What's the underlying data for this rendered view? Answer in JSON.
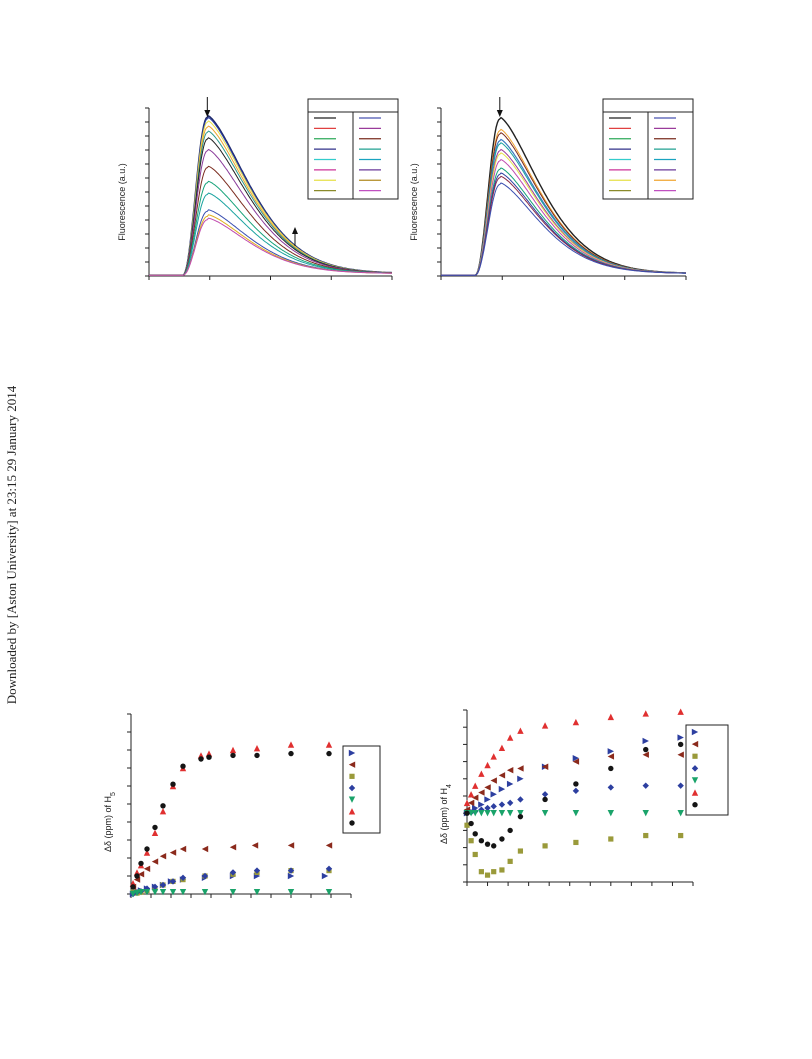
{
  "watermark": "Downloaded by [Aston University] at 23:15 29 January 2014",
  "chart_data": [
    {
      "type": "line",
      "ylabel": "Fluorescence (a.u.)",
      "xlabel": "",
      "legend": "top-right",
      "legend_rows": 8,
      "x_range": [
        0,
        100
      ],
      "ylim": [
        0,
        1
      ],
      "peak_x": 24,
      "tail_scale": 25,
      "series": [
        {
          "color": "#1f2a6b",
          "peak": 0.94,
          "lw": 1.6
        },
        {
          "color": "#2d3fa0",
          "peak": 0.93,
          "lw": 1.0
        },
        {
          "color": "#e6e04a",
          "peak": 0.91,
          "lw": 1.0
        },
        {
          "color": "#f0a430",
          "peak": 0.88,
          "lw": 1.0
        },
        {
          "color": "#2e9a8c",
          "peak": 0.85,
          "lw": 1.0
        },
        {
          "color": "#222222",
          "peak": 0.81,
          "lw": 1.0
        },
        {
          "color": "#8a3b9a",
          "peak": 0.74,
          "lw": 1.0
        },
        {
          "color": "#7a2b1e",
          "peak": 0.64,
          "lw": 1.0
        },
        {
          "color": "#17a37a",
          "peak": 0.55,
          "lw": 1.0
        },
        {
          "color": "#1aa3a0",
          "peak": 0.48,
          "lw": 1.0
        },
        {
          "color": "#3a4fb0",
          "peak": 0.38,
          "lw": 1.0
        },
        {
          "color": "#e0b020",
          "peak": 0.35,
          "lw": 1.0
        },
        {
          "color": "#c04bb0",
          "peak": 0.33,
          "lw": 1.0
        }
      ],
      "legend_colors": [
        "#222222",
        "#e04040",
        "#2eaa5a",
        "#30308a",
        "#33cccc",
        "#cc3399",
        "#e6e04a",
        "#8a8a2a",
        "#4a55b0",
        "#9a3b9a",
        "#7a2b1e",
        "#20a090",
        "#1aa3c0",
        "#6a3a9a",
        "#b08a20",
        "#c050c0"
      ],
      "annotations": [
        "down-arrow at peak",
        "up-arrow at crossing region"
      ]
    },
    {
      "type": "line",
      "ylabel": "Fluorescence (a.u.)",
      "xlabel": "",
      "legend": "top-right",
      "legend_rows": 8,
      "x_range": [
        0,
        100
      ],
      "ylim": [
        0,
        1
      ],
      "peak_x": 24,
      "tail_scale": 24,
      "series": [
        {
          "color": "#222222",
          "peak": 0.93,
          "lw": 1.4
        },
        {
          "color": "#f0a430",
          "peak": 0.86,
          "lw": 1.0
        },
        {
          "color": "#7a2b1e",
          "peak": 0.84,
          "lw": 1.0
        },
        {
          "color": "#3a7ac0",
          "peak": 0.8,
          "lw": 1.2
        },
        {
          "color": "#1aa3a0",
          "peak": 0.78,
          "lw": 1.0
        },
        {
          "color": "#9a3b9a",
          "peak": 0.74,
          "lw": 1.0
        },
        {
          "color": "#e6e04a",
          "peak": 0.72,
          "lw": 1.0
        },
        {
          "color": "#c04bb0",
          "peak": 0.68,
          "lw": 1.0
        },
        {
          "color": "#17a37a",
          "peak": 0.63,
          "lw": 1.0
        },
        {
          "color": "#2d3fa0",
          "peak": 0.6,
          "lw": 1.0
        },
        {
          "color": "#8a2b4a",
          "peak": 0.58,
          "lw": 1.0
        },
        {
          "color": "#3a4fb0",
          "peak": 0.54,
          "lw": 1.0
        }
      ],
      "legend_colors": [
        "#222222",
        "#e04040",
        "#2eaa5a",
        "#30308a",
        "#33cccc",
        "#cc3399",
        "#e6e04a",
        "#8a8a2a",
        "#4a55b0",
        "#9a3b9a",
        "#7a2b1e",
        "#20a090",
        "#1aa3c0",
        "#6a3a9a",
        "#f0a430",
        "#c050c0"
      ],
      "annotations": [
        "down-arrow at peak"
      ]
    },
    {
      "type": "scatter",
      "ylabel": "Δδ (ppm) of H",
      "ylabel_sub": "5",
      "xlabel": "",
      "legend": "right",
      "x_range": [
        0,
        11
      ],
      "ylim": [
        0,
        10
      ],
      "series": [
        {
          "marker": "tri-right",
          "color": "#2d3fa0",
          "points": [
            [
              0.1,
              0.0
            ],
            [
              0.3,
              0.1
            ],
            [
              0.5,
              0.2
            ],
            [
              0.8,
              0.3
            ],
            [
              1.2,
              0.4
            ],
            [
              1.6,
              0.5
            ],
            [
              2.0,
              0.7
            ],
            [
              2.6,
              0.8
            ],
            [
              3.7,
              0.9
            ],
            [
              5.1,
              1.0
            ],
            [
              6.3,
              1.0
            ],
            [
              8.0,
              1.0
            ],
            [
              9.7,
              1.0
            ]
          ]
        },
        {
          "marker": "tri-left",
          "color": "#8b2a1c",
          "points": [
            [
              0.1,
              0.4
            ],
            [
              0.3,
              0.8
            ],
            [
              0.5,
              1.1
            ],
            [
              0.8,
              1.4
            ],
            [
              1.2,
              1.8
            ],
            [
              1.6,
              2.1
            ],
            [
              2.1,
              2.3
            ],
            [
              2.6,
              2.5
            ],
            [
              3.7,
              2.5
            ],
            [
              5.1,
              2.6
            ],
            [
              6.2,
              2.7
            ],
            [
              8.0,
              2.7
            ],
            [
              9.9,
              2.7
            ]
          ]
        },
        {
          "marker": "square",
          "color": "#9a9a3a",
          "points": [
            [
              0.1,
              0.1
            ],
            [
              0.3,
              0.05
            ],
            [
              0.5,
              0.1
            ],
            [
              0.8,
              0.2
            ],
            [
              1.2,
              0.3
            ],
            [
              1.6,
              0.5
            ],
            [
              2.1,
              0.7
            ],
            [
              2.6,
              0.8
            ],
            [
              3.7,
              1.0
            ],
            [
              5.1,
              1.1
            ],
            [
              6.3,
              1.2
            ],
            [
              8.0,
              1.3
            ],
            [
              9.9,
              1.3
            ]
          ]
        },
        {
          "marker": "diamond",
          "color": "#2d3fa0",
          "points": [
            [
              0.1,
              0.0
            ],
            [
              0.3,
              0.1
            ],
            [
              0.5,
              0.15
            ],
            [
              0.8,
              0.3
            ],
            [
              1.2,
              0.4
            ],
            [
              1.6,
              0.5
            ],
            [
              2.1,
              0.7
            ],
            [
              2.6,
              0.9
            ],
            [
              3.7,
              1.0
            ],
            [
              5.1,
              1.2
            ],
            [
              6.3,
              1.3
            ],
            [
              8.0,
              1.3
            ],
            [
              9.9,
              1.4
            ]
          ]
        },
        {
          "marker": "tri-down",
          "color": "#1aa36a",
          "points": [
            [
              0.1,
              0.0
            ],
            [
              0.3,
              0.05
            ],
            [
              0.5,
              0.1
            ],
            [
              0.8,
              0.1
            ],
            [
              1.2,
              0.1
            ],
            [
              1.6,
              0.1
            ],
            [
              2.1,
              0.1
            ],
            [
              2.6,
              0.1
            ],
            [
              3.7,
              0.1
            ],
            [
              5.1,
              0.1
            ],
            [
              6.3,
              0.1
            ],
            [
              8.0,
              0.1
            ],
            [
              9.9,
              0.1
            ]
          ]
        },
        {
          "marker": "tri-up",
          "color": "#e03030",
          "points": [
            [
              0.1,
              0.6
            ],
            [
              0.3,
              1.2
            ],
            [
              0.5,
              1.6
            ],
            [
              0.8,
              2.3
            ],
            [
              1.2,
              3.4
            ],
            [
              1.6,
              4.6
            ],
            [
              2.1,
              6.0
            ],
            [
              2.6,
              7.0
            ],
            [
              3.5,
              7.7
            ],
            [
              3.9,
              7.8
            ],
            [
              5.1,
              8.0
            ],
            [
              6.3,
              8.1
            ],
            [
              8.0,
              8.3
            ],
            [
              9.9,
              8.3
            ]
          ]
        },
        {
          "marker": "circle",
          "color": "#151515",
          "points": [
            [
              0.1,
              0.4
            ],
            [
              0.3,
              1.0
            ],
            [
              0.5,
              1.7
            ],
            [
              0.8,
              2.5
            ],
            [
              1.2,
              3.7
            ],
            [
              1.6,
              4.9
            ],
            [
              2.1,
              6.1
            ],
            [
              2.6,
              7.1
            ],
            [
              3.5,
              7.5
            ],
            [
              3.9,
              7.6
            ],
            [
              5.1,
              7.7
            ],
            [
              6.3,
              7.7
            ],
            [
              8.0,
              7.8
            ],
            [
              9.9,
              7.8
            ]
          ]
        }
      ]
    },
    {
      "type": "scatter",
      "ylabel": "Δδ (ppm) of H",
      "ylabel_sub": "4",
      "xlabel": "",
      "legend": "right",
      "x_range": [
        0,
        11
      ],
      "ylim": [
        -4,
        6
      ],
      "series": [
        {
          "marker": "tri-right",
          "color": "#2d3fa0",
          "points": [
            [
              0.0,
              0.0
            ],
            [
              0.2,
              0.1
            ],
            [
              0.4,
              0.3
            ],
            [
              0.7,
              0.5
            ],
            [
              1.0,
              0.8
            ],
            [
              1.3,
              1.1
            ],
            [
              1.7,
              1.4
            ],
            [
              2.1,
              1.7
            ],
            [
              2.6,
              2.0
            ],
            [
              3.8,
              2.7
            ],
            [
              5.3,
              3.2
            ],
            [
              7.0,
              3.6
            ],
            [
              8.7,
              4.2
            ],
            [
              10.4,
              4.4
            ]
          ]
        },
        {
          "marker": "tri-left",
          "color": "#8b2a1c",
          "points": [
            [
              0.0,
              0.2
            ],
            [
              0.2,
              0.6
            ],
            [
              0.4,
              0.9
            ],
            [
              0.7,
              1.2
            ],
            [
              1.0,
              1.5
            ],
            [
              1.3,
              1.9
            ],
            [
              1.7,
              2.2
            ],
            [
              2.1,
              2.5
            ],
            [
              2.6,
              2.6
            ],
            [
              3.8,
              2.7
            ],
            [
              5.3,
              3.0
            ],
            [
              7.0,
              3.3
            ],
            [
              8.7,
              3.4
            ],
            [
              10.4,
              3.4
            ]
          ]
        },
        {
          "marker": "square",
          "color": "#9a9a3a",
          "points": [
            [
              0.0,
              -0.7
            ],
            [
              0.2,
              -1.6
            ],
            [
              0.4,
              -2.4
            ],
            [
              0.7,
              -3.4
            ],
            [
              1.0,
              -3.6
            ],
            [
              1.3,
              -3.4
            ],
            [
              1.7,
              -3.3
            ],
            [
              2.1,
              -2.8
            ],
            [
              2.6,
              -2.2
            ],
            [
              3.8,
              -1.9
            ],
            [
              5.3,
              -1.7
            ],
            [
              7.0,
              -1.5
            ],
            [
              8.7,
              -1.3
            ],
            [
              10.4,
              -1.3
            ]
          ]
        },
        {
          "marker": "diamond",
          "color": "#2d3fa0",
          "points": [
            [
              0.0,
              0.0
            ],
            [
              0.2,
              0.05
            ],
            [
              0.4,
              0.1
            ],
            [
              0.7,
              0.2
            ],
            [
              1.0,
              0.3
            ],
            [
              1.3,
              0.4
            ],
            [
              1.7,
              0.5
            ],
            [
              2.1,
              0.6
            ],
            [
              2.6,
              0.8
            ],
            [
              3.8,
              1.1
            ],
            [
              5.3,
              1.3
            ],
            [
              7.0,
              1.5
            ],
            [
              8.7,
              1.6
            ],
            [
              10.4,
              1.6
            ]
          ]
        },
        {
          "marker": "tri-down",
          "color": "#1aa36a",
          "points": [
            [
              0.0,
              0.0
            ],
            [
              0.2,
              0.0
            ],
            [
              0.4,
              0.0
            ],
            [
              0.7,
              0.0
            ],
            [
              1.0,
              0.0
            ],
            [
              1.3,
              0.0
            ],
            [
              1.7,
              0.0
            ],
            [
              2.1,
              0.0
            ],
            [
              2.6,
              0.0
            ],
            [
              3.8,
              0.0
            ],
            [
              5.3,
              0.0
            ],
            [
              7.0,
              0.0
            ],
            [
              8.7,
              0.0
            ],
            [
              10.4,
              0.0
            ]
          ]
        },
        {
          "marker": "tri-up",
          "color": "#e03030",
          "points": [
            [
              0.0,
              0.6
            ],
            [
              0.2,
              1.1
            ],
            [
              0.4,
              1.6
            ],
            [
              0.7,
              2.3
            ],
            [
              1.0,
              2.8
            ],
            [
              1.3,
              3.3
            ],
            [
              1.7,
              3.8
            ],
            [
              2.1,
              4.4
            ],
            [
              2.6,
              4.8
            ],
            [
              3.8,
              5.1
            ],
            [
              5.3,
              5.3
            ],
            [
              7.0,
              5.6
            ],
            [
              8.7,
              5.8
            ],
            [
              10.4,
              5.9
            ]
          ]
        },
        {
          "marker": "circle",
          "color": "#151515",
          "points": [
            [
              0.0,
              0.0
            ],
            [
              0.2,
              -0.6
            ],
            [
              0.4,
              -1.2
            ],
            [
              0.7,
              -1.6
            ],
            [
              1.0,
              -1.8
            ],
            [
              1.3,
              -1.9
            ],
            [
              1.7,
              -1.5
            ],
            [
              2.1,
              -1.0
            ],
            [
              2.6,
              -0.2
            ],
            [
              3.8,
              0.8
            ],
            [
              5.3,
              1.7
            ],
            [
              7.0,
              2.6
            ],
            [
              8.7,
              3.7
            ],
            [
              10.4,
              4.0
            ]
          ]
        }
      ]
    }
  ]
}
